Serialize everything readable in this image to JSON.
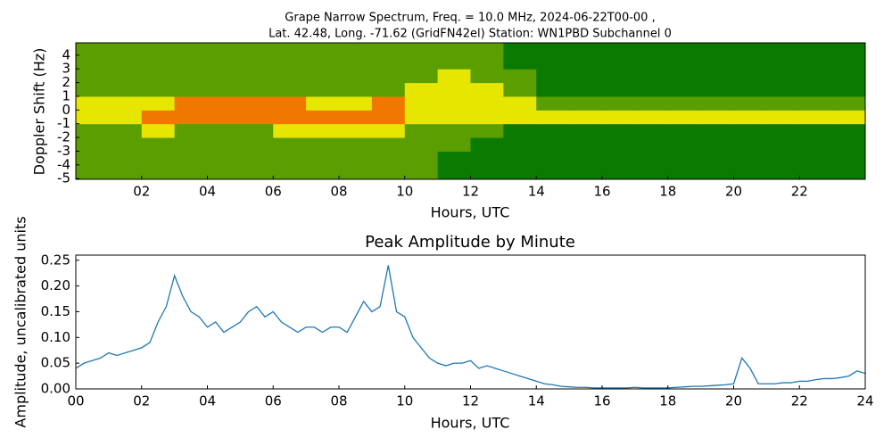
{
  "chart_data": [
    {
      "type": "heatmap",
      "title": "Grape Narrow Spectrum, Freq. = 10.0 MHz, 2024-06-22T00-00 ,",
      "subtitle": "Lat.  42.48, Long. -71.62 (GridFN42el) Station: WN1PBD Subchannel 0",
      "xlabel": "Hours, UTC",
      "ylabel": "Doppler Shift (Hz)",
      "x": [
        0.5,
        1.5,
        2.5,
        3.5,
        4.5,
        5.5,
        6.5,
        7.5,
        8.5,
        9.5,
        10.5,
        11.5,
        12.5,
        13.5,
        14.5,
        15.5,
        16.5,
        17.5,
        18.5,
        19.5,
        20.5,
        21.5,
        22.5,
        23.5
      ],
      "y": [
        -4.5,
        -3.5,
        -2.5,
        -1.5,
        -0.5,
        0.5,
        1.5,
        2.5,
        3.5,
        4.5
      ],
      "z": [
        [
          1,
          1,
          1,
          1,
          1,
          1,
          1,
          1,
          1,
          1,
          1,
          0,
          0,
          0,
          0,
          0,
          0,
          0,
          0,
          0,
          0,
          0,
          0,
          0
        ],
        [
          1,
          1,
          1,
          1,
          1,
          1,
          1,
          1,
          1,
          1,
          1,
          0,
          0,
          0,
          0,
          0,
          0,
          0,
          0,
          0,
          0,
          0,
          0,
          0
        ],
        [
          1,
          1,
          1,
          1,
          1,
          1,
          1,
          1,
          1,
          1,
          1,
          1,
          0,
          0,
          0,
          0,
          0,
          0,
          0,
          0,
          0,
          0,
          0,
          0
        ],
        [
          1,
          1,
          2,
          1,
          1,
          1,
          2,
          2,
          2,
          2,
          1,
          1,
          1,
          0,
          0,
          0,
          0,
          0,
          0,
          0,
          0,
          0,
          0,
          0
        ],
        [
          2,
          2,
          3,
          3,
          3,
          3,
          3,
          3,
          3,
          3,
          2,
          2,
          2,
          2,
          2,
          2,
          2,
          2,
          2,
          2,
          2,
          2,
          2,
          2
        ],
        [
          2,
          2,
          2,
          3,
          3,
          3,
          3,
          2,
          2,
          3,
          2,
          2,
          2,
          2,
          1,
          1,
          1,
          1,
          1,
          1,
          1,
          1,
          1,
          1
        ],
        [
          1,
          1,
          1,
          1,
          1,
          1,
          1,
          1,
          1,
          1,
          2,
          2,
          2,
          1,
          0,
          0,
          0,
          0,
          0,
          0,
          0,
          0,
          0,
          0
        ],
        [
          1,
          1,
          1,
          1,
          1,
          1,
          1,
          1,
          1,
          1,
          1,
          2,
          1,
          1,
          0,
          0,
          0,
          0,
          0,
          0,
          0,
          0,
          0,
          0
        ],
        [
          1,
          1,
          1,
          1,
          1,
          1,
          1,
          1,
          1,
          1,
          1,
          1,
          1,
          0,
          0,
          0,
          0,
          0,
          0,
          0,
          0,
          0,
          0,
          0
        ],
        [
          1,
          1,
          1,
          1,
          1,
          1,
          1,
          1,
          1,
          1,
          1,
          1,
          1,
          0,
          0,
          0,
          0,
          0,
          0,
          0,
          0,
          0,
          0,
          0
        ]
      ],
      "colors": [
        "#0b7a00",
        "#5a9e00",
        "#e6e600",
        "#f07800"
      ],
      "xlim": [
        0,
        24
      ],
      "ylim": [
        -5.05,
        4.9
      ],
      "xticks": [
        {
          "value": 2,
          "label": "02"
        },
        {
          "value": 4,
          "label": "04"
        },
        {
          "value": 6,
          "label": "06"
        },
        {
          "value": 8,
          "label": "08"
        },
        {
          "value": 10,
          "label": "10"
        },
        {
          "value": 12,
          "label": "12"
        },
        {
          "value": 14,
          "label": "14"
        },
        {
          "value": 16,
          "label": "16"
        },
        {
          "value": 18,
          "label": "18"
        },
        {
          "value": 20,
          "label": "20"
        },
        {
          "value": 22,
          "label": "22"
        }
      ],
      "yticks": [
        -5,
        -4,
        -3,
        -2,
        -1,
        0,
        1,
        2,
        3,
        4
      ]
    },
    {
      "type": "line",
      "title": "Peak Amplitude by Minute",
      "xlabel": "Hours, UTC",
      "ylabel": "Amplitude, uncalibrated units",
      "color": "#1f77b4",
      "x": [
        0,
        0.25,
        0.5,
        0.75,
        1,
        1.25,
        1.5,
        1.75,
        2,
        2.25,
        2.5,
        2.75,
        3,
        3.25,
        3.5,
        3.75,
        4,
        4.25,
        4.5,
        4.75,
        5,
        5.25,
        5.5,
        5.75,
        6,
        6.25,
        6.5,
        6.75,
        7,
        7.25,
        7.5,
        7.75,
        8,
        8.25,
        8.5,
        8.75,
        9,
        9.25,
        9.5,
        9.75,
        10,
        10.25,
        10.5,
        10.75,
        11,
        11.25,
        11.5,
        11.75,
        12,
        12.25,
        12.5,
        12.75,
        13,
        13.25,
        13.5,
        13.75,
        14,
        14.25,
        14.5,
        14.75,
        15,
        15.25,
        15.5,
        15.75,
        16,
        16.25,
        16.5,
        16.75,
        17,
        17.25,
        17.5,
        17.75,
        18,
        18.25,
        18.5,
        18.75,
        19,
        19.25,
        19.5,
        19.75,
        20,
        20.25,
        20.5,
        20.75,
        21,
        21.25,
        21.5,
        21.75,
        22,
        22.25,
        22.5,
        22.75,
        23,
        23.25,
        23.5,
        23.75,
        24
      ],
      "values": [
        0.04,
        0.05,
        0.055,
        0.06,
        0.07,
        0.065,
        0.07,
        0.075,
        0.08,
        0.09,
        0.13,
        0.16,
        0.22,
        0.18,
        0.15,
        0.14,
        0.12,
        0.13,
        0.11,
        0.12,
        0.13,
        0.15,
        0.16,
        0.14,
        0.15,
        0.13,
        0.12,
        0.11,
        0.12,
        0.12,
        0.11,
        0.12,
        0.12,
        0.11,
        0.14,
        0.17,
        0.15,
        0.16,
        0.24,
        0.15,
        0.14,
        0.1,
        0.08,
        0.06,
        0.05,
        0.045,
        0.05,
        0.05,
        0.055,
        0.04,
        0.045,
        0.04,
        0.035,
        0.03,
        0.025,
        0.02,
        0.015,
        0.01,
        0.008,
        0.005,
        0.004,
        0.003,
        0.003,
        0.002,
        0.002,
        0.002,
        0.002,
        0.002,
        0.003,
        0.002,
        0.002,
        0.002,
        0.002,
        0.003,
        0.004,
        0.005,
        0.005,
        0.006,
        0.007,
        0.008,
        0.01,
        0.06,
        0.04,
        0.01,
        0.01,
        0.01,
        0.012,
        0.012,
        0.015,
        0.015,
        0.018,
        0.02,
        0.02,
        0.022,
        0.025,
        0.035,
        0.03
      ],
      "xlim": [
        0,
        24
      ],
      "ylim": [
        0,
        0.26
      ],
      "xticks": [
        {
          "value": 0,
          "label": "00"
        },
        {
          "value": 2,
          "label": "02"
        },
        {
          "value": 4,
          "label": "04"
        },
        {
          "value": 6,
          "label": "06"
        },
        {
          "value": 8,
          "label": "08"
        },
        {
          "value": 10,
          "label": "10"
        },
        {
          "value": 12,
          "label": "12"
        },
        {
          "value": 14,
          "label": "14"
        },
        {
          "value": 16,
          "label": "16"
        },
        {
          "value": 18,
          "label": "18"
        },
        {
          "value": 20,
          "label": "20"
        },
        {
          "value": 22,
          "label": "22"
        },
        {
          "value": 24,
          "label": "24"
        }
      ],
      "yticks": [
        {
          "value": 0,
          "label": "0.00"
        },
        {
          "value": 0.05,
          "label": "0.05"
        },
        {
          "value": 0.1,
          "label": "0.10"
        },
        {
          "value": 0.15,
          "label": "0.15"
        },
        {
          "value": 0.2,
          "label": "0.20"
        },
        {
          "value": 0.25,
          "label": "0.25"
        }
      ]
    }
  ]
}
